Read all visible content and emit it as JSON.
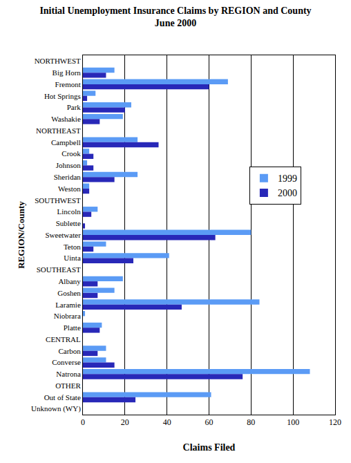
{
  "chart_data": {
    "type": "bar",
    "orientation": "horizontal",
    "title": "Initial Unemployment Insurance Claims by REGION and County",
    "subtitle": "June 2000",
    "x_label": "Claims Filed",
    "y_label": "REGION/County",
    "categories": [
      "NORTHWEST",
      "Big Horn",
      "Fremont",
      "Hot Springs",
      "Park",
      "Washakie",
      "NORTHEAST",
      "Campbell",
      "Crook",
      "Johnson",
      "Sheridan",
      "Weston",
      "SOUTHWEST",
      "Lincoln",
      "Sublette",
      "Sweetwater",
      "Teton",
      "Uinta",
      "SOUTHEAST",
      "Albany",
      "Goshen",
      "Laramie",
      "Niobrara",
      "Platte",
      "CENTRAL",
      "Carbon",
      "Converse",
      "Natrona",
      "OTHER",
      "Out of State",
      "Unknown (WY)"
    ],
    "series": [
      {
        "name": "1999",
        "color": "#5b9bf5",
        "values": [
          null,
          15,
          69,
          6,
          23,
          19,
          null,
          26,
          3,
          2,
          26,
          3,
          null,
          7,
          0,
          80,
          11,
          41,
          null,
          19,
          15,
          84,
          1,
          9,
          null,
          11,
          11,
          108,
          null,
          61,
          0
        ]
      },
      {
        "name": "2000",
        "color": "#2828b8",
        "values": [
          null,
          11,
          60,
          2,
          20,
          8,
          null,
          36,
          5,
          5,
          15,
          3,
          null,
          4,
          1,
          63,
          5,
          24,
          null,
          7,
          7,
          47,
          0,
          8,
          null,
          7,
          15,
          76,
          null,
          25,
          0
        ]
      }
    ],
    "xlim": [
      0,
      120
    ],
    "xticks": [
      0,
      20,
      40,
      60,
      80,
      100,
      120
    ],
    "grid": true,
    "legend": "right"
  }
}
